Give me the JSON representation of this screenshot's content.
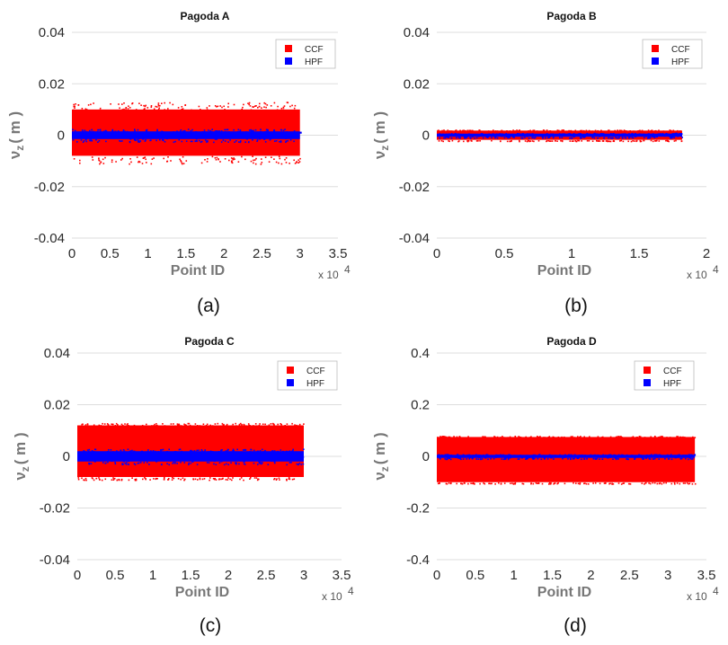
{
  "chart_data": [
    {
      "id": "a",
      "type": "scatter",
      "title": "Pagoda A",
      "caption": "(a)",
      "xlabel": "Point ID",
      "ylabel_main": "ν",
      "ylabel_sub": "z",
      "ylabel_unit": "( m )",
      "x_multiplier": "x 10",
      "x_multiplier_exp": "4",
      "xlim": [
        0,
        3.5
      ],
      "ylim": [
        -0.04,
        0.04
      ],
      "xticks": [
        0,
        0.5,
        1,
        1.5,
        2,
        2.5,
        3,
        3.5
      ],
      "xtick_labels": [
        "0",
        "0.5",
        "1",
        "1.5",
        "2",
        "2.5",
        "3",
        "3.5"
      ],
      "yticks": [
        -0.04,
        -0.02,
        0,
        0.02,
        0.04
      ],
      "ytick_labels": [
        "-0.04",
        "-0.02",
        "0",
        "0.02",
        "0.04"
      ],
      "legend": [
        "CCF",
        "HPF"
      ],
      "series": [
        {
          "name": "CCF",
          "color": "#ff0000",
          "x_range": [
            0,
            3.0
          ],
          "y_core": [
            -0.008,
            0.01
          ],
          "y_outlier": [
            -0.011,
            0.013
          ]
        },
        {
          "name": "HPF",
          "color": "#0000ff",
          "x_range": [
            0,
            3.0
          ],
          "y_core": [
            -0.0015,
            0.0015
          ],
          "y_outlier": [
            -0.0025,
            0.0025
          ]
        }
      ]
    },
    {
      "id": "b",
      "type": "scatter",
      "title": "Pagoda B",
      "caption": "(b)",
      "xlabel": "Point ID",
      "ylabel_main": "ν",
      "ylabel_sub": "z",
      "ylabel_unit": "( m )",
      "x_multiplier": "x 10",
      "x_multiplier_exp": "4",
      "xlim": [
        0,
        2
      ],
      "ylim": [
        -0.04,
        0.04
      ],
      "xticks": [
        0,
        0.5,
        1,
        1.5,
        2
      ],
      "xtick_labels": [
        "0",
        "0.5",
        "1",
        "1.5",
        "2"
      ],
      "yticks": [
        -0.04,
        -0.02,
        0,
        0.02,
        0.04
      ],
      "ytick_labels": [
        "-0.04",
        "-0.02",
        "0",
        "0.02",
        "0.04"
      ],
      "legend": [
        "CCF",
        "HPF"
      ],
      "series": [
        {
          "name": "CCF",
          "color": "#ff0000",
          "x_range": [
            0,
            1.82
          ],
          "y_core": [
            -0.0018,
            0.0018
          ],
          "y_outlier": [
            -0.0022,
            0.0022
          ]
        },
        {
          "name": "HPF",
          "color": "#0000ff",
          "x_range": [
            0,
            1.82
          ],
          "y_core": [
            -0.0006,
            0.0006
          ],
          "y_outlier": [
            -0.0009,
            0.0009
          ]
        }
      ]
    },
    {
      "id": "c",
      "type": "scatter",
      "title": "Pagoda C",
      "caption": "(c)",
      "xlabel": "Point ID",
      "ylabel_main": "ν",
      "ylabel_sub": "z",
      "ylabel_unit": "( m )",
      "x_multiplier": "x 10",
      "x_multiplier_exp": "4",
      "xlim": [
        0,
        3.5
      ],
      "ylim": [
        -0.04,
        0.04
      ],
      "xticks": [
        0,
        0.5,
        1,
        1.5,
        2,
        2.5,
        3,
        3.5
      ],
      "xtick_labels": [
        "0",
        "0.5",
        "1",
        "1.5",
        "2",
        "2.5",
        "3",
        "3.5"
      ],
      "yticks": [
        -0.04,
        -0.02,
        0,
        0.02,
        0.04
      ],
      "ytick_labels": [
        "-0.04",
        "-0.02",
        "0",
        "0.02",
        "0.04"
      ],
      "legend": [
        "CCF",
        "HPF"
      ],
      "series": [
        {
          "name": "CCF",
          "color": "#ff0000",
          "x_range": [
            0,
            3.0
          ],
          "y_core": [
            -0.008,
            0.012
          ],
          "y_outlier": [
            -0.009,
            0.013
          ]
        },
        {
          "name": "HPF",
          "color": "#0000ff",
          "x_range": [
            0,
            3.0
          ],
          "y_core": [
            -0.002,
            0.002
          ],
          "y_outlier": [
            -0.003,
            0.003
          ]
        }
      ]
    },
    {
      "id": "d",
      "type": "scatter",
      "title": "Pagoda D",
      "caption": "(d)",
      "xlabel": "Point ID",
      "ylabel_main": "ν",
      "ylabel_sub": "z",
      "ylabel_unit": "( m )",
      "x_multiplier": "x 10",
      "x_multiplier_exp": "4",
      "xlim": [
        0,
        3.5
      ],
      "ylim": [
        -0.4,
        0.4
      ],
      "xticks": [
        0,
        0.5,
        1,
        1.5,
        2,
        2.5,
        3,
        3.5
      ],
      "xtick_labels": [
        "0",
        "0.5",
        "1",
        "1.5",
        "2",
        "2.5",
        "3",
        "3.5"
      ],
      "yticks": [
        -0.4,
        -0.2,
        0,
        0.2,
        0.4
      ],
      "ytick_labels": [
        "-0.4",
        "-0.2",
        "0",
        "0.2",
        "0.4"
      ],
      "legend": [
        "CCF",
        "HPF"
      ],
      "series": [
        {
          "name": "CCF",
          "color": "#ff0000",
          "x_range": [
            0,
            3.35
          ],
          "y_core": [
            -0.1,
            0.075
          ],
          "y_outlier": [
            -0.105,
            0.08
          ]
        },
        {
          "name": "HPF",
          "color": "#0000ff",
          "x_range": [
            0,
            3.35
          ],
          "y_core": [
            -0.006,
            0.006
          ],
          "y_outlier": [
            -0.009,
            0.009
          ]
        }
      ]
    }
  ],
  "colors": {
    "grid": "#dddddd",
    "ccf": "#ff0000",
    "hpf": "#0000ff",
    "legend_border": "#bbbbbb"
  }
}
